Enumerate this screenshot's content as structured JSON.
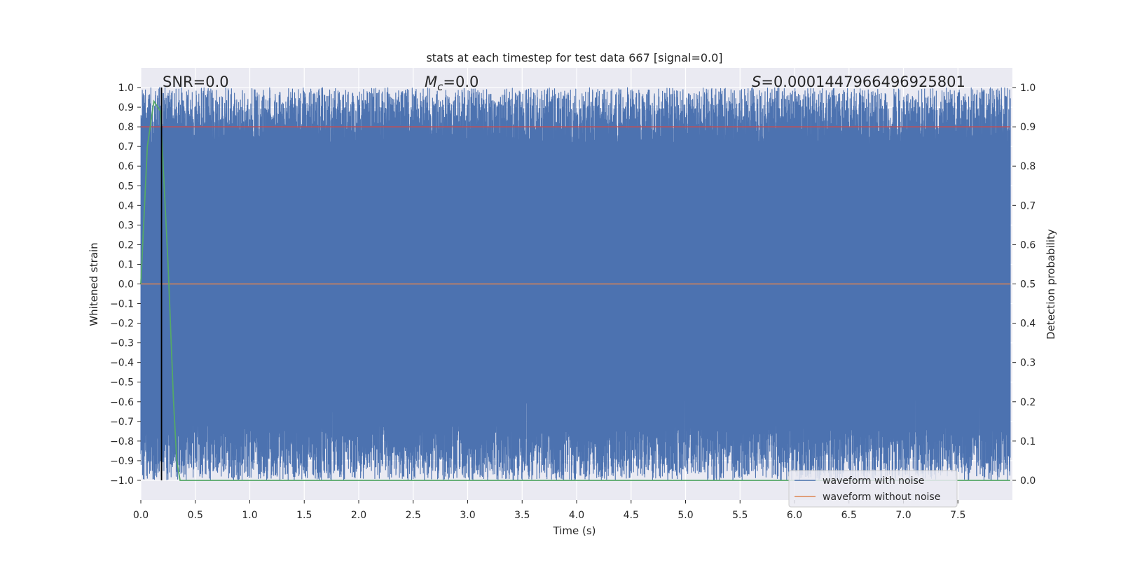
{
  "chart_data": {
    "type": "line",
    "title": "stats at each timestep for test data 667 [signal=0.0]",
    "xlabel": "Time (s)",
    "ylabel": "Whitened strain",
    "ylabel_right": "Detection probability",
    "xlim": [
      0.0,
      8.0
    ],
    "ylim": [
      -1.1,
      1.1
    ],
    "ylim_right": [
      -0.05,
      1.05
    ],
    "x_ticks": [
      0.0,
      0.5,
      1.0,
      1.5,
      2.0,
      2.5,
      3.0,
      3.5,
      4.0,
      4.5,
      5.0,
      5.5,
      6.0,
      6.5,
      7.0,
      7.5
    ],
    "x_tick_labels": [
      "0.0",
      "0.5",
      "1.0",
      "1.5",
      "2.0",
      "2.5",
      "3.0",
      "3.5",
      "4.0",
      "4.5",
      "5.0",
      "5.5",
      "6.0",
      "6.5",
      "7.0",
      "7.5"
    ],
    "y_ticks": [
      1.0,
      0.9,
      0.8,
      0.7,
      0.6,
      0.5,
      0.4,
      0.3,
      0.2,
      0.1,
      0.0,
      -0.1,
      -0.2,
      -0.3,
      -0.4,
      -0.5,
      -0.6,
      -0.7,
      -0.8,
      -0.9,
      -1.0
    ],
    "y_tick_labels": [
      "1.0",
      "0.9",
      "0.8",
      "0.7",
      "0.6",
      "0.5",
      "0.4",
      "0.3",
      "0.2",
      "0.1",
      "0.0",
      "−0.1",
      "−0.2",
      "−0.3",
      "−0.4",
      "−0.5",
      "−0.6",
      "−0.7",
      "−0.8",
      "−0.9",
      "−1.0"
    ],
    "y_right_ticks": [
      1.0,
      0.9,
      0.8,
      0.7,
      0.6,
      0.5,
      0.4,
      0.3,
      0.2,
      0.1,
      0.0
    ],
    "y_right_tick_labels": [
      "1.0",
      "0.9",
      "0.8",
      "0.7",
      "0.6",
      "0.5",
      "0.4",
      "0.3",
      "0.2",
      "0.1",
      "0.0"
    ],
    "grid": true,
    "series": [
      {
        "name": "waveform with noise",
        "color": "#4c72b0",
        "description": "dense whitened strain noise spanning approximately -1.0 to 1.0 over 0-8 s",
        "approx_range": [
          -1.0,
          1.0
        ],
        "seed": 667
      },
      {
        "name": "waveform without noise",
        "color": "#dd8452",
        "values": "flat at 0.0 over entire time range"
      },
      {
        "name": "detection probability",
        "axis": "right",
        "color": "#55a868",
        "x": [
          0.0,
          0.06,
          0.12,
          0.18,
          0.25,
          0.3,
          0.33,
          0.36,
          0.4,
          8.0
        ],
        "values": [
          0.5,
          0.85,
          0.965,
          0.94,
          0.55,
          0.2,
          0.05,
          0.0,
          0.0,
          0.0
        ]
      },
      {
        "name": "threshold",
        "axis": "right",
        "color": "#c44e52",
        "values": [
          0.9,
          0.9
        ],
        "x": [
          0.0,
          8.0
        ]
      }
    ],
    "vertical_line": {
      "x": 0.19,
      "color": "#000000"
    },
    "annotations": {
      "snr": "SNR=0.0",
      "mc_symbol": "M",
      "mc_sub": "c",
      "mc_value": "=0.0",
      "s_symbol": "S",
      "s_value": "=0.0001447966496925801"
    },
    "legend": {
      "position": "bottom-right",
      "entries": [
        "waveform with noise",
        "waveform without noise"
      ]
    }
  },
  "colors": {
    "plot_bg": "#eaeaf2",
    "grid": "#ffffff",
    "noise": "#4c72b0",
    "clean": "#dd8452",
    "prob": "#55a868",
    "threshold": "#c44e52"
  }
}
